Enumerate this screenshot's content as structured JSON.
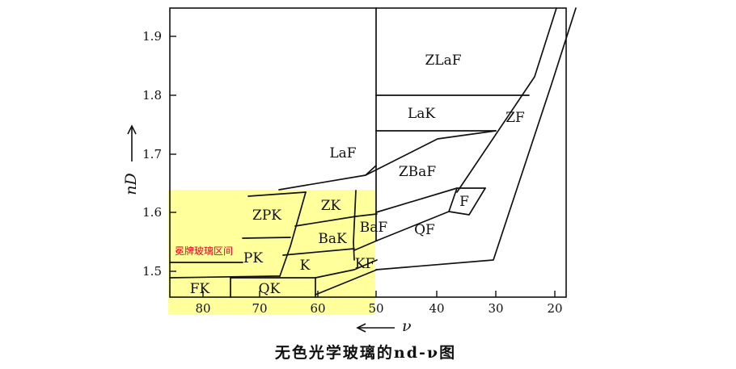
{
  "figure": {
    "caption": "无色光学玻璃的nd-ν图",
    "y_axis_symbol": "nD",
    "x_axis_symbol": "ν",
    "y_ticks": [
      "1.9",
      "1.8",
      "1.7",
      "1.6",
      "1.5"
    ],
    "x_ticks": [
      "80",
      "70",
      "60",
      "50",
      "40",
      "30",
      "20"
    ]
  },
  "regions": {
    "zlaf": "ZLaF",
    "lak": "LaK",
    "zf": "ZF",
    "laf": "LaF",
    "zbaf": "ZBaF",
    "zk": "ZK",
    "zpk": "ZPK",
    "f": "F",
    "baf": "BaF",
    "bak": "BaK",
    "qf": "QF",
    "pk": "PK",
    "k": "K",
    "kf": "KF",
    "fk": "FK",
    "qk": "QK"
  },
  "highlight": {
    "label": "冕牌玻璃区间",
    "color": "#ffff4a"
  }
}
